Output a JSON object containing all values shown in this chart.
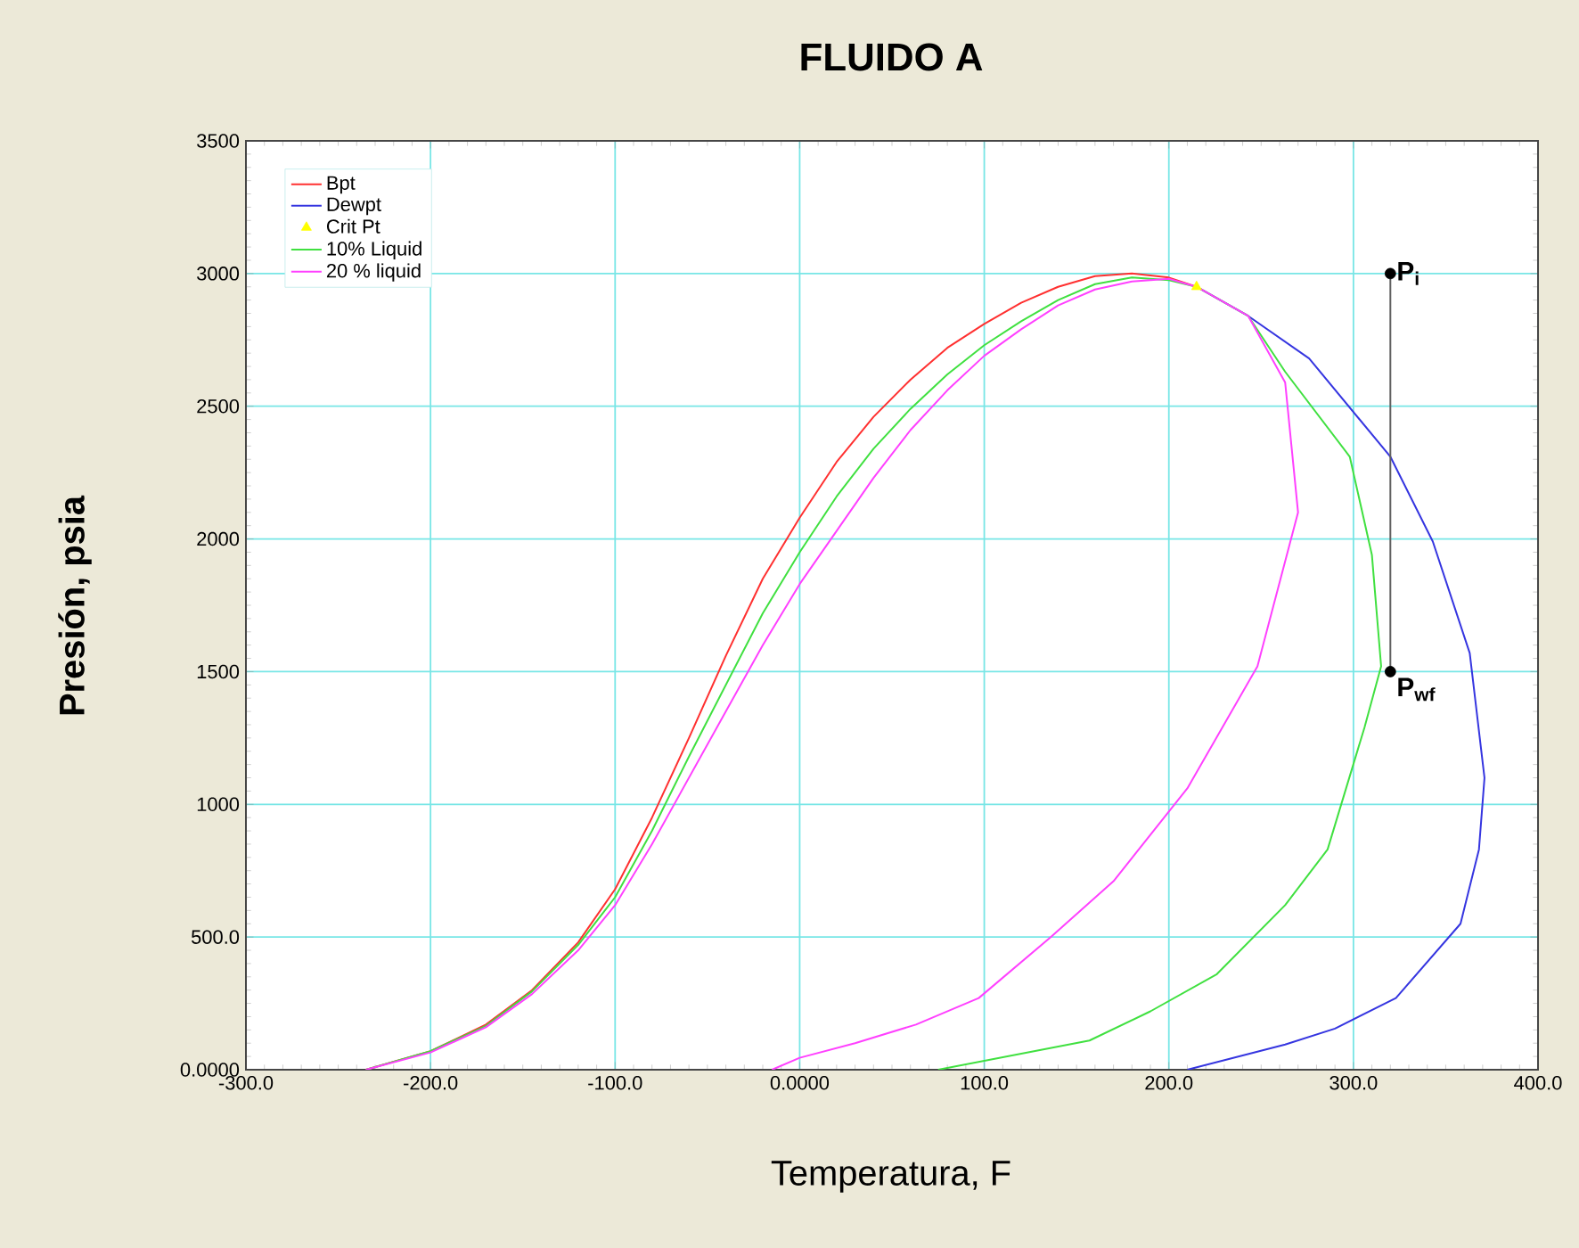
{
  "chart_data": {
    "type": "line",
    "title": "FLUIDO A",
    "xlabel": "Temperatura, F",
    "ylabel": "Presión, psia",
    "xlim": [
      -300,
      400
    ],
    "ylim": [
      0,
      3500
    ],
    "xticks": [
      {
        "value": -300,
        "label": "-300.0"
      },
      {
        "value": -200,
        "label": "-200.0"
      },
      {
        "value": -100,
        "label": "-100.0"
      },
      {
        "value": 0,
        "label": "0.0000"
      },
      {
        "value": 100,
        "label": "100.0"
      },
      {
        "value": 200,
        "label": "200.0"
      },
      {
        "value": 300,
        "label": "300.0"
      },
      {
        "value": 400,
        "label": "400.0"
      }
    ],
    "yticks": [
      {
        "value": 0,
        "label": "0.0000"
      },
      {
        "value": 500,
        "label": "500.0"
      },
      1000,
      1500,
      2000,
      2500,
      3000,
      3500
    ],
    "grid": true,
    "legend": "top left",
    "series": [
      {
        "name": "Bpt",
        "color": "#ff3030",
        "marker": "none",
        "x": [
          -235,
          -200,
          -170,
          -145,
          -120,
          -100,
          -80,
          -60,
          -40,
          -20,
          0,
          20,
          40,
          60,
          80,
          100,
          120,
          140,
          160,
          180,
          200,
          215
        ],
        "values": [
          0,
          70,
          170,
          300,
          480,
          680,
          950,
          1250,
          1560,
          1850,
          2080,
          2290,
          2460,
          2600,
          2720,
          2810,
          2890,
          2950,
          2990,
          3000,
          2985,
          2950
        ]
      },
      {
        "name": "Dewpt",
        "color": "#3535e0",
        "marker": "none",
        "x": [
          215,
          243,
          276,
          320,
          343,
          363,
          371,
          368,
          358,
          323,
          290,
          263,
          210
        ],
        "values": [
          2950,
          2840,
          2680,
          2310,
          1990,
          1570,
          1100,
          830,
          550,
          270,
          155,
          95,
          0
        ]
      },
      {
        "name": "Crit Pt",
        "type": "scatter",
        "color": "#ffff00",
        "marker": "triangle",
        "x": [
          215
        ],
        "values": [
          2950
        ]
      },
      {
        "name": "10% Liquid",
        "color": "#40e040",
        "marker": "none",
        "x": [
          -235,
          -200,
          -170,
          -145,
          -120,
          -100,
          -80,
          -60,
          -40,
          -20,
          0,
          20,
          40,
          60,
          80,
          100,
          120,
          140,
          160,
          180,
          200,
          215,
          243,
          263,
          298,
          310,
          315,
          306,
          286,
          263,
          226,
          190,
          157,
          75
        ],
        "values": [
          0,
          70,
          165,
          295,
          470,
          650,
          900,
          1180,
          1450,
          1720,
          1950,
          2160,
          2340,
          2490,
          2620,
          2730,
          2820,
          2900,
          2960,
          2985,
          2975,
          2950,
          2840,
          2630,
          2310,
          1940,
          1520,
          1290,
          830,
          620,
          360,
          220,
          110,
          0
        ]
      },
      {
        "name": "20 % liquid",
        "color": "#ff40ff",
        "marker": "none",
        "x": [
          -235,
          -200,
          -170,
          -145,
          -120,
          -100,
          -80,
          -60,
          -40,
          -20,
          0,
          20,
          40,
          60,
          80,
          100,
          120,
          140,
          160,
          180,
          200,
          215,
          243,
          263,
          270,
          248,
          210,
          170,
          136,
          97,
          63,
          30,
          0,
          -15
        ],
        "values": [
          0,
          65,
          160,
          285,
          450,
          620,
          850,
          1100,
          1350,
          1600,
          1830,
          2030,
          2230,
          2410,
          2560,
          2690,
          2790,
          2880,
          2940,
          2970,
          2980,
          2950,
          2840,
          2590,
          2100,
          1520,
          1060,
          710,
          500,
          270,
          170,
          100,
          45,
          0
        ]
      },
      {
        "color": "#606060",
        "marker": "none",
        "x": [
          320,
          320
        ],
        "values": [
          3000,
          1500
        ]
      },
      {
        "type": "scatter",
        "color": "#000000",
        "marker": "circle",
        "x": [
          320,
          320
        ],
        "values": [
          3000,
          1500
        ]
      }
    ],
    "annotations": [
      {
        "text": "P$_{i}$",
        "x": 320,
        "y": 3000
      },
      {
        "text": "P$_{wf}$",
        "x": 320,
        "y": 1500
      }
    ]
  }
}
